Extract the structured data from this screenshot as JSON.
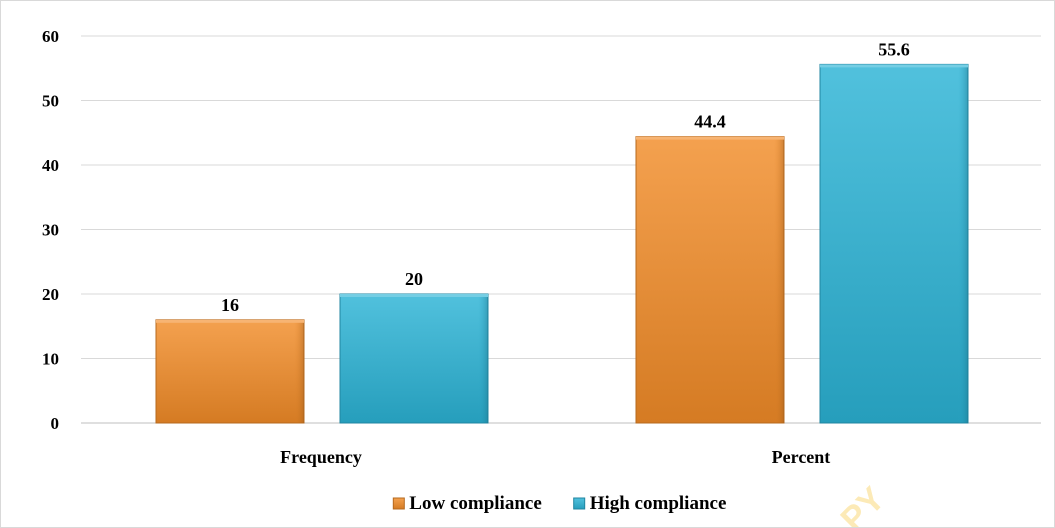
{
  "chart_data": {
    "type": "bar",
    "categories": [
      "Frequency",
      "Percent"
    ],
    "series": [
      {
        "name": "Low compliance",
        "values": [
          16,
          44.4
        ],
        "color": "#f28c28"
      },
      {
        "name": "High compliance",
        "values": [
          20,
          55.6
        ],
        "color": "#2bb3d6"
      }
    ],
    "ylim": [
      0,
      60
    ],
    "yticks": [
      0,
      10,
      20,
      30,
      40,
      50,
      60
    ],
    "data_labels": true,
    "grid": true,
    "legend_position": "bottom",
    "title": "",
    "xlabel": "",
    "ylabel": ""
  },
  "watermark": {
    "text": "PY",
    "color": "#f7b500"
  }
}
